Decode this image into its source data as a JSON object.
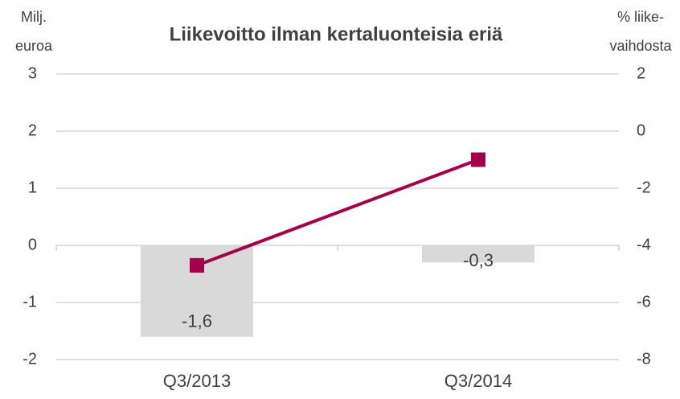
{
  "chart_data": {
    "type": "bar",
    "title": "Liikevoitto ilman kertaluonteisia eriä",
    "ylabel": [
      "Milj.",
      "euroa"
    ],
    "y2label": [
      "% liike-",
      "vaihdosta"
    ],
    "categories": [
      "Q3/2013",
      "Q3/2014"
    ],
    "series": [
      {
        "type": "bar",
        "color": "#d9d9d9",
        "values": [
          -1.6,
          -0.3
        ],
        "value_labels": [
          "-1,6",
          "-0,3"
        ]
      },
      {
        "type": "line",
        "axis": "y2",
        "color": "#a3004c",
        "values": [
          -4.7,
          -1.0
        ]
      }
    ],
    "ylim": [
      -2,
      3
    ],
    "yticks": [
      -2,
      -1,
      0,
      1,
      2,
      3
    ],
    "y2lim": [
      -8,
      2
    ],
    "y2ticks": [
      -8,
      -6,
      -4,
      -2,
      0,
      2
    ],
    "grid": true
  }
}
